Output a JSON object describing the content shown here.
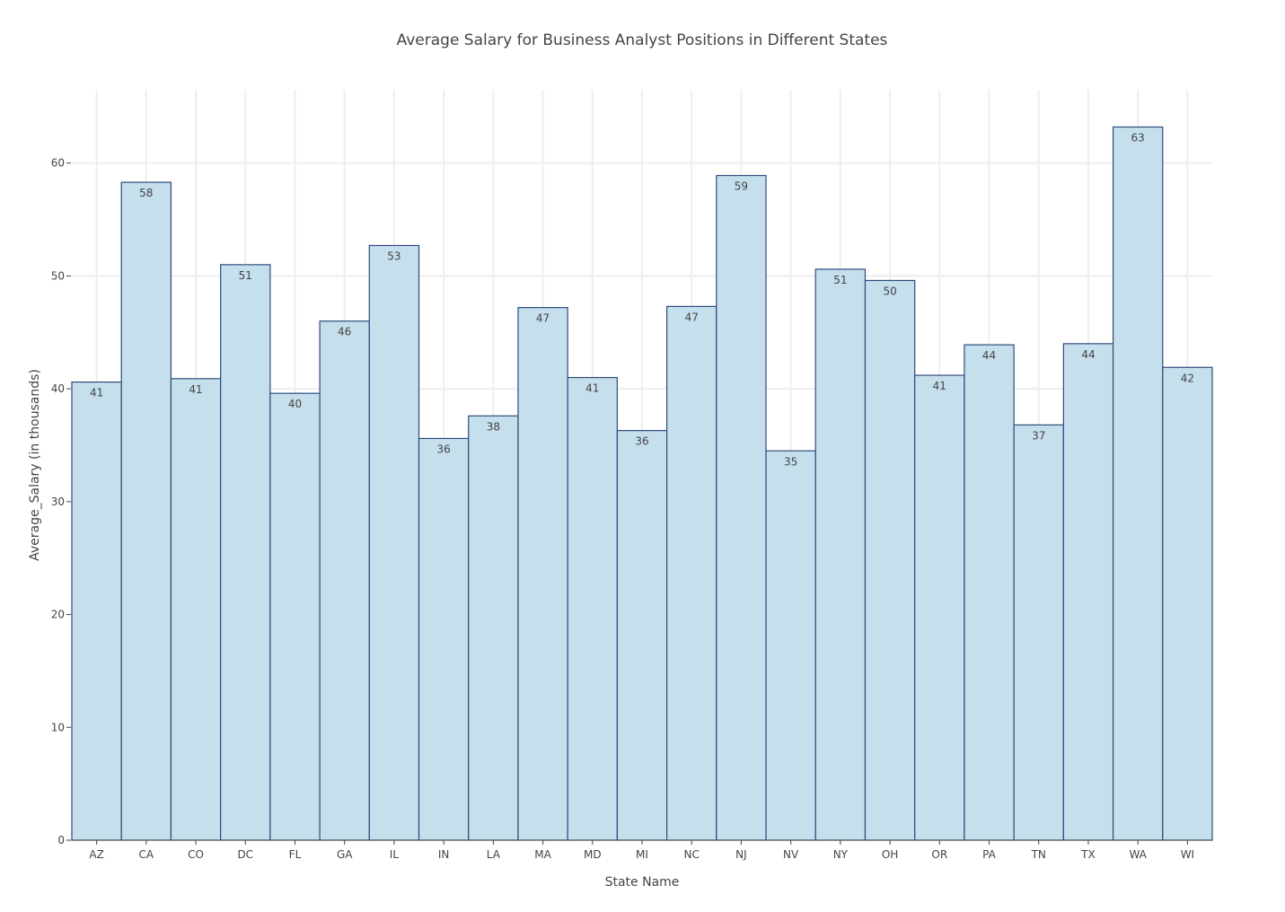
{
  "chart_data": {
    "type": "bar",
    "title": "Average Salary for Business Analyst Positions in Different States",
    "xlabel": "State Name",
    "ylabel": "Average_Salary (in thousands)",
    "categories": [
      "AZ",
      "CA",
      "CO",
      "DC",
      "FL",
      "GA",
      "IL",
      "IN",
      "LA",
      "MA",
      "MD",
      "MI",
      "NC",
      "NJ",
      "NV",
      "NY",
      "OH",
      "OR",
      "PA",
      "TN",
      "TX",
      "WA",
      "WI"
    ],
    "values": [
      40.6,
      58.3,
      40.9,
      51.0,
      39.6,
      46.0,
      52.7,
      35.6,
      37.6,
      47.2,
      41.0,
      36.3,
      47.3,
      58.9,
      34.5,
      50.6,
      49.6,
      41.2,
      43.9,
      36.8,
      44.0,
      63.2,
      41.9
    ],
    "labels": [
      "41",
      "58",
      "41",
      "51",
      "40",
      "46",
      "53",
      "36",
      "38",
      "47",
      "41",
      "36",
      "47",
      "59",
      "35",
      "51",
      "50",
      "41",
      "44",
      "37",
      "44",
      "63",
      "42"
    ],
    "yticks": [
      0,
      10,
      20,
      30,
      40,
      50,
      60
    ],
    "ytick_labels": [
      "0",
      "10",
      "20",
      "30",
      "40",
      "50",
      "60"
    ],
    "ylim": [
      0,
      66.5
    ],
    "grid": true,
    "bar_fill": "#c5dfec",
    "bar_stroke": "#2f4b7c"
  }
}
